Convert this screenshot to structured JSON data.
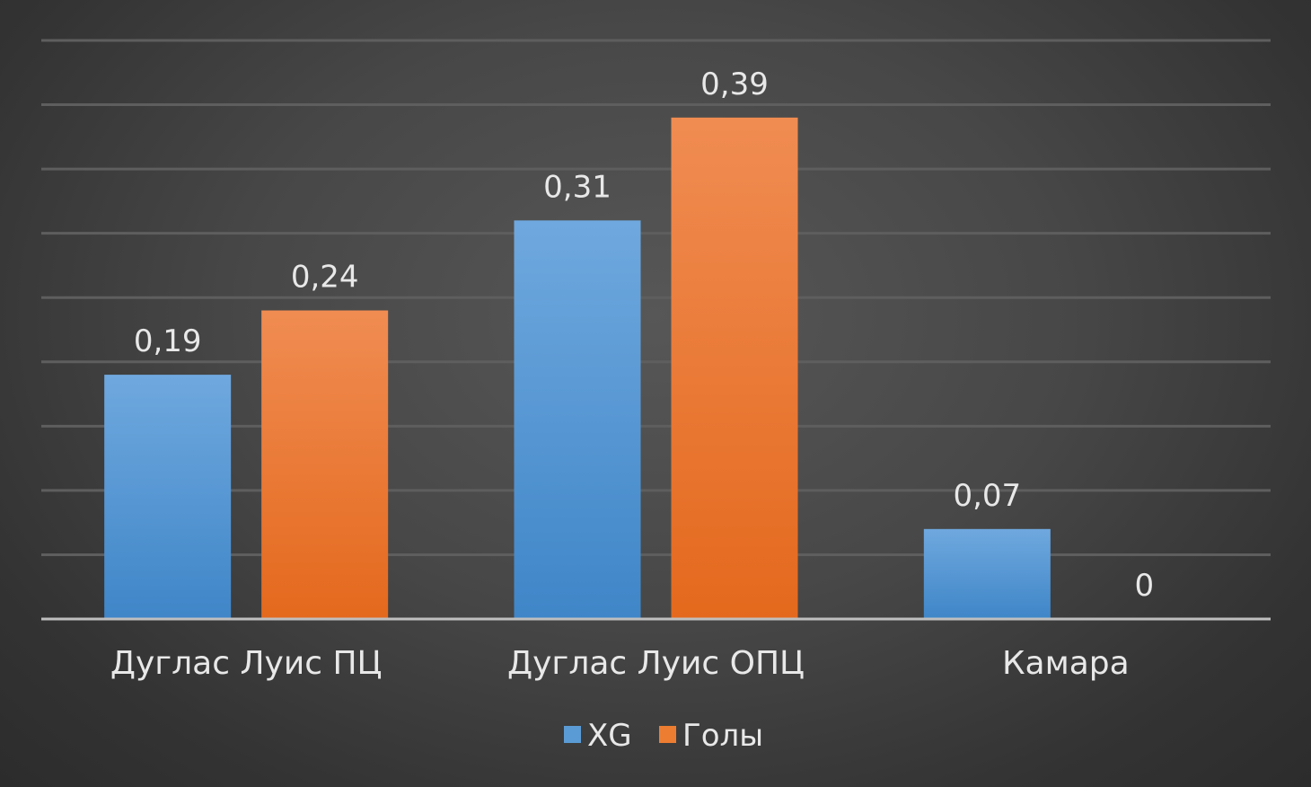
{
  "chart_data": {
    "type": "bar",
    "categories": [
      "Дуглас Луис ПЦ",
      "Дуглас Луис ОПЦ",
      "Камара"
    ],
    "series": [
      {
        "name": "XG",
        "values": [
          0.19,
          0.31,
          0.07
        ],
        "labels": [
          "0,19",
          "0,31",
          "0,07"
        ],
        "color": "#5b9bd5"
      },
      {
        "name": "Голы",
        "values": [
          0.24,
          0.39,
          0
        ],
        "labels": [
          "0,24",
          "0,39",
          "0"
        ],
        "color": "#ed7d31"
      }
    ],
    "ylim": [
      0,
      0.45
    ],
    "grid": true,
    "legend": "bottom-center"
  }
}
